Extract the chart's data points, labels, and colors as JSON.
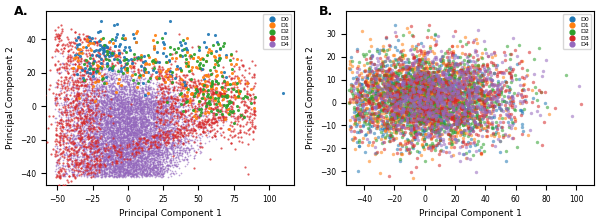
{
  "title_A": "A.",
  "title_B": "B.",
  "xlabel": "Principal Component 1",
  "ylabel": "Principal Component 2",
  "legend_labels": [
    "D0",
    "D1",
    "D2",
    "D3",
    "D4"
  ],
  "colors": [
    "#1f77b4",
    "#ff7f0e",
    "#2ca02c",
    "#d62728",
    "#9467bd"
  ],
  "plot_A": {
    "xlim": [
      -58,
      118
    ],
    "ylim": [
      -47,
      57
    ],
    "xticks": [
      -50,
      -25,
      0,
      25,
      50,
      75,
      100
    ],
    "yticks": [
      -40,
      -20,
      0,
      20,
      40
    ]
  },
  "plot_B": {
    "xlim": [
      -52,
      112
    ],
    "ylim": [
      -36,
      40
    ],
    "xticks": [
      -40,
      -20,
      0,
      20,
      40,
      60,
      80,
      100
    ],
    "yticks": [
      -30,
      -20,
      -10,
      0,
      10,
      20,
      30
    ]
  },
  "background_color": "#ffffff",
  "seed": 42
}
